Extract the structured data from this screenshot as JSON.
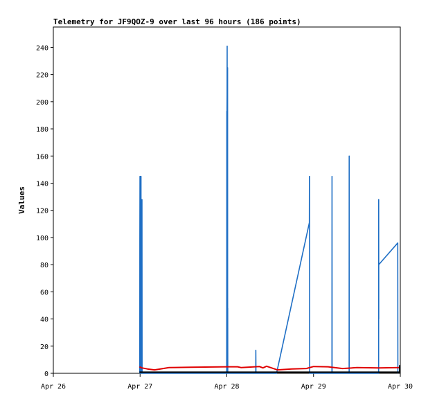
{
  "chart_data": {
    "type": "line",
    "title": "Telemetry for JF9QOZ-9 over last 96 hours (186 points)",
    "xlabel": "",
    "ylabel": "Values",
    "x_ticks": [
      "Apr 26",
      "Apr 27",
      "Apr 28",
      "Apr 29",
      "Apr 30"
    ],
    "xlim": [
      "2024-04-26T00:00",
      "2024-04-30T00:00"
    ],
    "ylim": [
      0,
      255
    ],
    "y_ticks": [
      0,
      20,
      40,
      60,
      80,
      100,
      120,
      140,
      160,
      180,
      200,
      220,
      240
    ],
    "grid": false,
    "colors": {
      "series1": "#1f6fc5",
      "series2": "#e00000",
      "series3": "#000000",
      "axis": "#000000"
    },
    "series": [
      {
        "color": "#1f6fc5",
        "points": [
          [
            "2024-04-26T23:55",
            0
          ],
          [
            "2024-04-26T23:56",
            97
          ],
          [
            "2024-04-26T23:58",
            145
          ],
          [
            "2024-04-27T00:00",
            0
          ],
          [
            "2024-04-27T00:04",
            0
          ],
          [
            "2024-04-27T00:05",
            145
          ],
          [
            "2024-04-27T00:07",
            128
          ],
          [
            "2024-04-27T00:08",
            0
          ],
          [
            "2024-04-27T00:10",
            32
          ],
          [
            "2024-04-27T00:11",
            0
          ],
          [
            "2024-04-27T00:13",
            0
          ],
          [
            "2024-04-27T00:14",
            73
          ],
          [
            "2024-04-27T00:15",
            145
          ],
          [
            "2024-04-27T00:16",
            0
          ],
          [
            "2024-04-27T00:18",
            32
          ],
          [
            "2024-04-27T00:19",
            0
          ],
          [
            "2024-04-27T00:30",
            0
          ],
          [
            "2024-04-27T00:32",
            128
          ],
          [
            "2024-04-27T00:34",
            0
          ],
          [
            "2024-04-27T23:58",
            0
          ],
          [
            "2024-04-27T23:59",
            65
          ],
          [
            "2024-04-28T00:00",
            193
          ],
          [
            "2024-04-28T00:01",
            112
          ],
          [
            "2024-04-28T00:03",
            0
          ],
          [
            "2024-04-28T00:04",
            195
          ],
          [
            "2024-04-28T00:05",
            205
          ],
          [
            "2024-04-28T00:06",
            241
          ],
          [
            "2024-04-28T00:07",
            0
          ],
          [
            "2024-04-28T00:08",
            10
          ],
          [
            "2024-04-28T00:11",
            120
          ],
          [
            "2024-04-28T00:12",
            138
          ],
          [
            "2024-04-28T00:13",
            225
          ],
          [
            "2024-04-28T00:14",
            0
          ],
          [
            "2024-04-28T00:15",
            48
          ],
          [
            "2024-04-28T00:16",
            0
          ],
          [
            "2024-04-28T08:00",
            0
          ],
          [
            "2024-04-28T08:02",
            17
          ],
          [
            "2024-04-28T08:04",
            0
          ],
          [
            "2024-04-28T13:45",
            0
          ],
          [
            "2024-04-28T22:50",
            111
          ],
          [
            "2024-04-28T22:52",
            145
          ],
          [
            "2024-04-28T22:53",
            145
          ],
          [
            "2024-04-28T22:55",
            0
          ],
          [
            "2024-04-29T05:05",
            0
          ],
          [
            "2024-04-29T05:06",
            145
          ],
          [
            "2024-04-29T05:07",
            48
          ],
          [
            "2024-04-29T05:08",
            0
          ],
          [
            "2024-04-29T09:50",
            0
          ],
          [
            "2024-04-29T09:51",
            160
          ],
          [
            "2024-04-29T09:52",
            0
          ],
          [
            "2024-04-29T18:00",
            0
          ],
          [
            "2024-04-29T18:01",
            128
          ],
          [
            "2024-04-29T18:02",
            40
          ],
          [
            "2024-04-29T18:03",
            80
          ],
          [
            "2024-04-29T23:18",
            96
          ],
          [
            "2024-04-29T23:20",
            0
          ]
        ]
      },
      {
        "color": "#e00000",
        "points": [
          [
            "2024-04-26T23:50",
            4.8
          ],
          [
            "2024-04-27T00:30",
            4
          ],
          [
            "2024-04-27T02:00",
            3.2
          ],
          [
            "2024-04-27T04:00",
            2.5
          ],
          [
            "2024-04-27T08:00",
            4.2
          ],
          [
            "2024-04-27T14:00",
            4.5
          ],
          [
            "2024-04-28T00:00",
            4.8
          ],
          [
            "2024-04-28T03:00",
            4.8
          ],
          [
            "2024-04-28T04:00",
            4.2
          ],
          [
            "2024-04-28T09:00",
            5
          ],
          [
            "2024-04-28T10:00",
            4
          ],
          [
            "2024-04-28T11:00",
            5.2
          ],
          [
            "2024-04-28T14:00",
            2.5
          ],
          [
            "2024-04-28T18:00",
            3.2
          ],
          [
            "2024-04-28T22:00",
            3.5
          ],
          [
            "2024-04-29T00:00",
            5
          ],
          [
            "2024-04-29T04:00",
            4.8
          ],
          [
            "2024-04-29T08:00",
            3.5
          ],
          [
            "2024-04-29T12:00",
            4.2
          ],
          [
            "2024-04-29T18:00",
            4
          ],
          [
            "2024-04-29T23:50",
            4.2
          ]
        ]
      },
      {
        "color": "#000000",
        "points": [
          [
            "2024-04-26T23:50",
            0.8
          ],
          [
            "2024-04-29T23:50",
            0.8
          ]
        ]
      }
    ]
  }
}
